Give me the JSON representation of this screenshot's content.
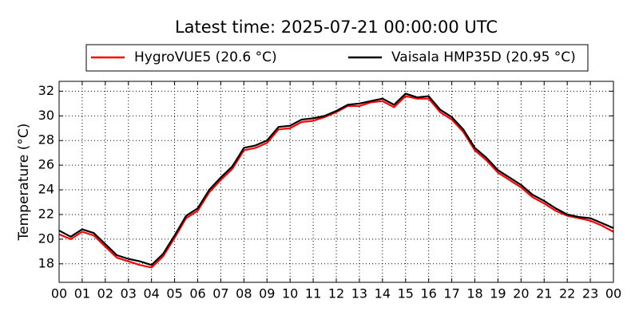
{
  "chart_data": {
    "type": "line",
    "title": "Latest time: 2025-07-21 00:00:00 UTC",
    "y_label": "Temperature (°C)",
    "x": [
      0,
      0.5,
      1,
      1.5,
      2,
      2.5,
      3,
      3.5,
      4,
      4.5,
      5,
      5.5,
      6,
      6.5,
      7,
      7.5,
      8,
      8.5,
      9,
      9.5,
      10,
      10.5,
      11,
      11.5,
      12,
      12.5,
      13,
      13.5,
      14,
      14.5,
      15,
      15.5,
      16,
      16.5,
      17,
      17.5,
      18,
      18.5,
      19,
      19.5,
      20,
      20.5,
      21,
      21.5,
      22,
      22.5,
      23,
      23.5,
      24
    ],
    "series": [
      {
        "name": "HygroVUE5 (20.6 °C)",
        "color": "#ff0000",
        "values": [
          20.4,
          20.0,
          20.6,
          20.3,
          19.4,
          18.5,
          18.2,
          17.9,
          17.7,
          18.6,
          20.1,
          21.7,
          22.3,
          23.8,
          24.8,
          25.7,
          27.2,
          27.4,
          27.8,
          28.9,
          29.0,
          29.5,
          29.6,
          29.9,
          30.3,
          30.8,
          30.8,
          31.1,
          31.2,
          30.7,
          31.6,
          31.4,
          31.4,
          30.3,
          29.7,
          28.7,
          27.2,
          26.4,
          25.4,
          24.8,
          24.2,
          23.4,
          22.9,
          22.3,
          21.9,
          21.7,
          21.5,
          21.1,
          20.6
        ]
      },
      {
        "name": "Vaisala HMP35D (20.95 °C)",
        "color": "#000000",
        "values": [
          20.7,
          20.2,
          20.8,
          20.5,
          19.6,
          18.7,
          18.4,
          18.2,
          17.9,
          18.8,
          20.3,
          21.9,
          22.5,
          24.0,
          25.0,
          25.9,
          27.4,
          27.6,
          28.0,
          29.1,
          29.2,
          29.7,
          29.8,
          30.0,
          30.4,
          30.9,
          31.0,
          31.2,
          31.4,
          30.9,
          31.8,
          31.5,
          31.6,
          30.5,
          29.9,
          28.9,
          27.4,
          26.6,
          25.6,
          25.0,
          24.4,
          23.6,
          23.1,
          22.5,
          22.0,
          21.8,
          21.7,
          21.3,
          20.9
        ]
      }
    ],
    "xlim": [
      0,
      24
    ],
    "xticks": [
      {
        "value": 0,
        "label": "00"
      },
      {
        "value": 1,
        "label": "01"
      },
      {
        "value": 2,
        "label": "02"
      },
      {
        "value": 3,
        "label": "03"
      },
      {
        "value": 4,
        "label": "04"
      },
      {
        "value": 5,
        "label": "05"
      },
      {
        "value": 6,
        "label": "06"
      },
      {
        "value": 7,
        "label": "07"
      },
      {
        "value": 8,
        "label": "08"
      },
      {
        "value": 9,
        "label": "09"
      },
      {
        "value": 10,
        "label": "10"
      },
      {
        "value": 11,
        "label": "11"
      },
      {
        "value": 12,
        "label": "12"
      },
      {
        "value": 13,
        "label": "13"
      },
      {
        "value": 14,
        "label": "14"
      },
      {
        "value": 15,
        "label": "15"
      },
      {
        "value": 16,
        "label": "16"
      },
      {
        "value": 17,
        "label": "17"
      },
      {
        "value": 18,
        "label": "18"
      },
      {
        "value": 19,
        "label": "19"
      },
      {
        "value": 20,
        "label": "20"
      },
      {
        "value": 21,
        "label": "21"
      },
      {
        "value": 22,
        "label": "22"
      },
      {
        "value": 23,
        "label": "23"
      },
      {
        "value": 24,
        "label": "00"
      }
    ],
    "ylim": [
      16.5,
      32.8
    ],
    "yticks": [
      18,
      20,
      22,
      24,
      26,
      28,
      30,
      32
    ],
    "grid": true,
    "legend": "top"
  }
}
